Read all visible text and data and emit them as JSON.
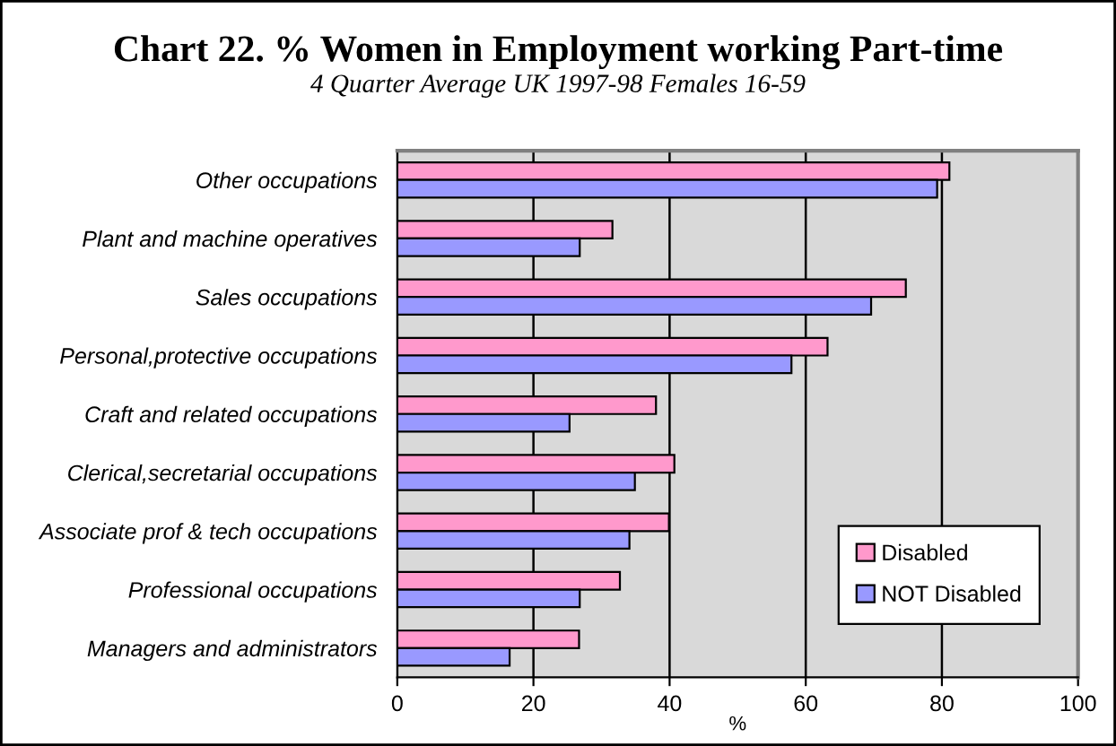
{
  "chart_data": {
    "type": "bar",
    "orientation": "horizontal",
    "title": "Chart 22. % Women in Employment working Part-time",
    "subtitle": "4 Quarter Average UK 1997-98 Females 16-59",
    "xlabel": "%",
    "categories": [
      "Other occupations",
      "Plant and machine operatives",
      "Sales occupations",
      "Personal,protective occupations",
      "Craft and related occupations",
      "Clerical,secretarial occupations",
      "Associate prof & tech occupations",
      "Professional occupations",
      "Managers and administrators"
    ],
    "series": [
      {
        "name": "Disabled",
        "color": "#ff99cc",
        "values": [
          81.1,
          31.6,
          74.7,
          63.2,
          38.0,
          40.7,
          39.9,
          32.7,
          26.7
        ]
      },
      {
        "name": "NOT Disabled",
        "color": "#9999ff",
        "values": [
          79.3,
          26.8,
          69.6,
          57.9,
          25.3,
          34.9,
          34.1,
          26.8,
          16.5
        ]
      }
    ],
    "xlim": [
      0,
      100
    ],
    "xticks": [
      0,
      20,
      40,
      60,
      80,
      100
    ],
    "grid": "x",
    "legend": "bottom right"
  }
}
